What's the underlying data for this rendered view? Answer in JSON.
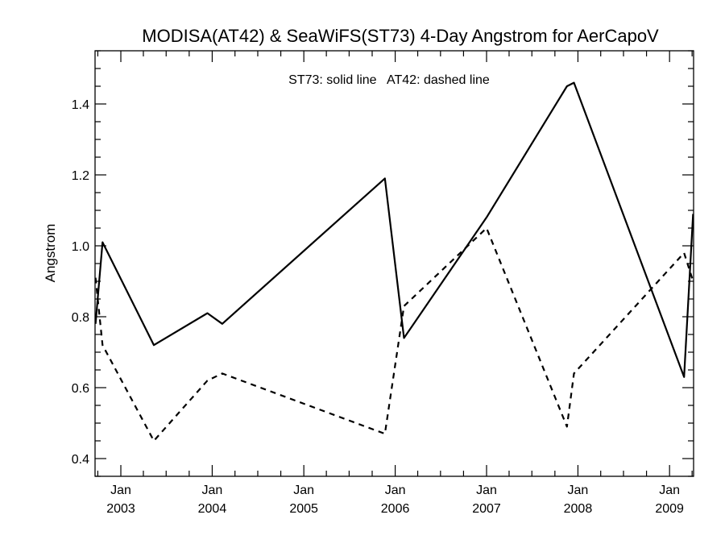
{
  "chart_data": {
    "type": "line",
    "title": "MODISA(AT42) & SeaWiFS(ST73) 4-Day Angstrom for AerCapoV",
    "legend_text": "ST73: solid line   AT42: dashed line",
    "xlabel": "",
    "ylabel": "Angstrom",
    "xlim": [
      "2002-09-20",
      "2009-04-07"
    ],
    "ylim": [
      0.35,
      1.55
    ],
    "y_ticks": [
      0.4,
      0.6,
      0.8,
      1.0,
      1.2,
      1.4
    ],
    "y_tick_labels": [
      "0.4",
      "0.6",
      "0.8",
      "1.0",
      "1.2",
      "1.4"
    ],
    "x_ticks": [
      {
        "date": "2003-01-01",
        "month": "Jan",
        "year": "2003"
      },
      {
        "date": "2004-01-01",
        "month": "Jan",
        "year": "2004"
      },
      {
        "date": "2005-01-01",
        "month": "Jan",
        "year": "2005"
      },
      {
        "date": "2006-01-01",
        "month": "Jan",
        "year": "2006"
      },
      {
        "date": "2007-01-01",
        "month": "Jan",
        "year": "2007"
      },
      {
        "date": "2008-01-01",
        "month": "Jan",
        "year": "2008"
      },
      {
        "date": "2009-01-01",
        "month": "Jan",
        "year": "2009"
      }
    ],
    "grid": false,
    "series": [
      {
        "name": "ST73",
        "style": "solid",
        "points": [
          [
            "2002-09-22",
            0.78
          ],
          [
            "2002-10-20",
            1.01
          ],
          [
            "2003-05-13",
            0.72
          ],
          [
            "2003-12-13",
            0.81
          ],
          [
            "2004-02-10",
            0.78
          ],
          [
            "2005-11-21",
            1.19
          ],
          [
            "2006-02-05",
            0.74
          ],
          [
            "2007-01-01",
            1.08
          ],
          [
            "2007-11-18",
            1.45
          ],
          [
            "2007-12-16",
            1.46
          ],
          [
            "2009-02-28",
            0.63
          ],
          [
            "2009-04-05",
            1.09
          ]
        ]
      },
      {
        "name": "AT42",
        "style": "dashed",
        "points": [
          [
            "2002-09-22",
            0.91
          ],
          [
            "2002-10-20",
            0.72
          ],
          [
            "2003-05-13",
            0.45
          ],
          [
            "2003-12-13",
            0.62
          ],
          [
            "2004-02-10",
            0.64
          ],
          [
            "2005-11-21",
            0.47
          ],
          [
            "2006-02-05",
            0.83
          ],
          [
            "2007-01-01",
            1.05
          ],
          [
            "2007-11-18",
            0.49
          ],
          [
            "2007-12-16",
            0.64
          ],
          [
            "2009-02-28",
            0.98
          ],
          [
            "2009-04-05",
            0.9
          ]
        ]
      }
    ]
  }
}
